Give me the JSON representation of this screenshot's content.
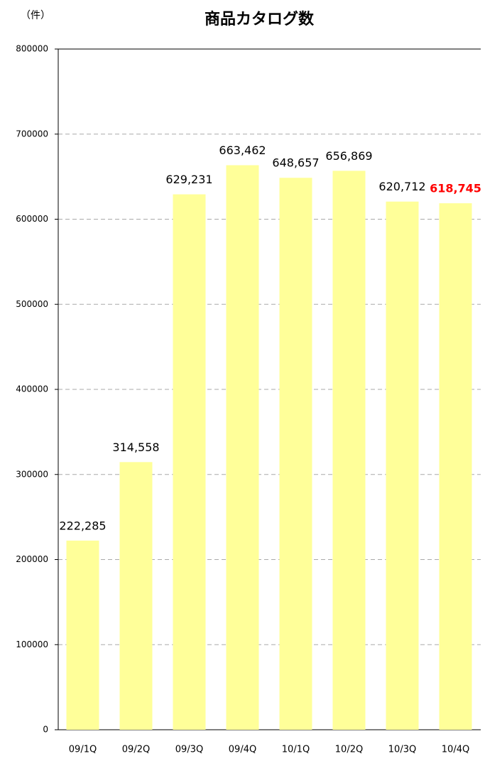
{
  "chart_data": {
    "type": "bar",
    "title": "商品カタログ数",
    "y_axis_label": "（件）",
    "categories": [
      "09/1Q",
      "09/2Q",
      "09/3Q",
      "09/4Q",
      "10/1Q",
      "10/2Q",
      "10/3Q",
      "10/4Q"
    ],
    "values": [
      222285,
      314558,
      629231,
      663462,
      648657,
      656869,
      620712,
      618745
    ],
    "value_labels": [
      "222,285",
      "314,558",
      "629,231",
      "663,462",
      "648,657",
      "656,869",
      "620,712",
      "618,745"
    ],
    "value_label_colors": [
      "#000000",
      "#000000",
      "#000000",
      "#000000",
      "#000000",
      "#000000",
      "#000000",
      "#ff0000"
    ],
    "value_label_bold": [
      false,
      false,
      false,
      false,
      false,
      false,
      false,
      true
    ],
    "color": "#ffff99",
    "ylim": [
      0,
      800000
    ],
    "yticks": [
      0,
      100000,
      200000,
      300000,
      400000,
      500000,
      600000,
      700000,
      800000
    ],
    "grid": true
  }
}
